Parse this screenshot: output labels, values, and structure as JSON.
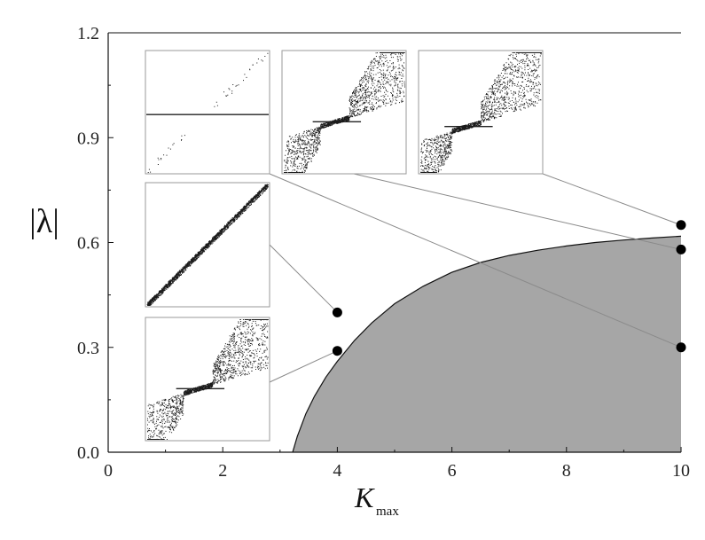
{
  "chart_data": {
    "type": "area",
    "xlabel": "K",
    "xlabel_subscript": "max",
    "ylabel": "|λ|",
    "xlim": [
      0,
      10
    ],
    "ylim": [
      0.0,
      1.2
    ],
    "x_ticks": [
      "0",
      "2",
      "4",
      "6",
      "8",
      "10"
    ],
    "y_ticks": [
      "0.0",
      "0.3",
      "0.6",
      "0.9",
      "1.2"
    ],
    "region_boundary": {
      "x": [
        3.22,
        3.3,
        3.45,
        3.6,
        3.8,
        4.0,
        4.3,
        4.6,
        5.0,
        5.5,
        6.0,
        6.5,
        7.0,
        7.5,
        8.0,
        8.5,
        9.0,
        9.5,
        10.0
      ],
      "y": [
        0.0,
        0.045,
        0.11,
        0.16,
        0.215,
        0.26,
        0.32,
        0.37,
        0.425,
        0.475,
        0.515,
        0.543,
        0.563,
        0.578,
        0.59,
        0.6,
        0.607,
        0.613,
        0.618
      ]
    },
    "fill_color": "#a6a6a6",
    "points": [
      {
        "x": 4,
        "y": 0.4
      },
      {
        "x": 4,
        "y": 0.29
      },
      {
        "x": 10,
        "y": 0.65
      },
      {
        "x": 10,
        "y": 0.58
      },
      {
        "x": 10,
        "y": 0.3
      }
    ],
    "insets": [
      {
        "pattern": "flat-center"
      },
      {
        "pattern": "step-middle"
      },
      {
        "pattern": "step-lower"
      },
      {
        "pattern": "diagonal"
      },
      {
        "pattern": "step-bottom"
      }
    ]
  }
}
